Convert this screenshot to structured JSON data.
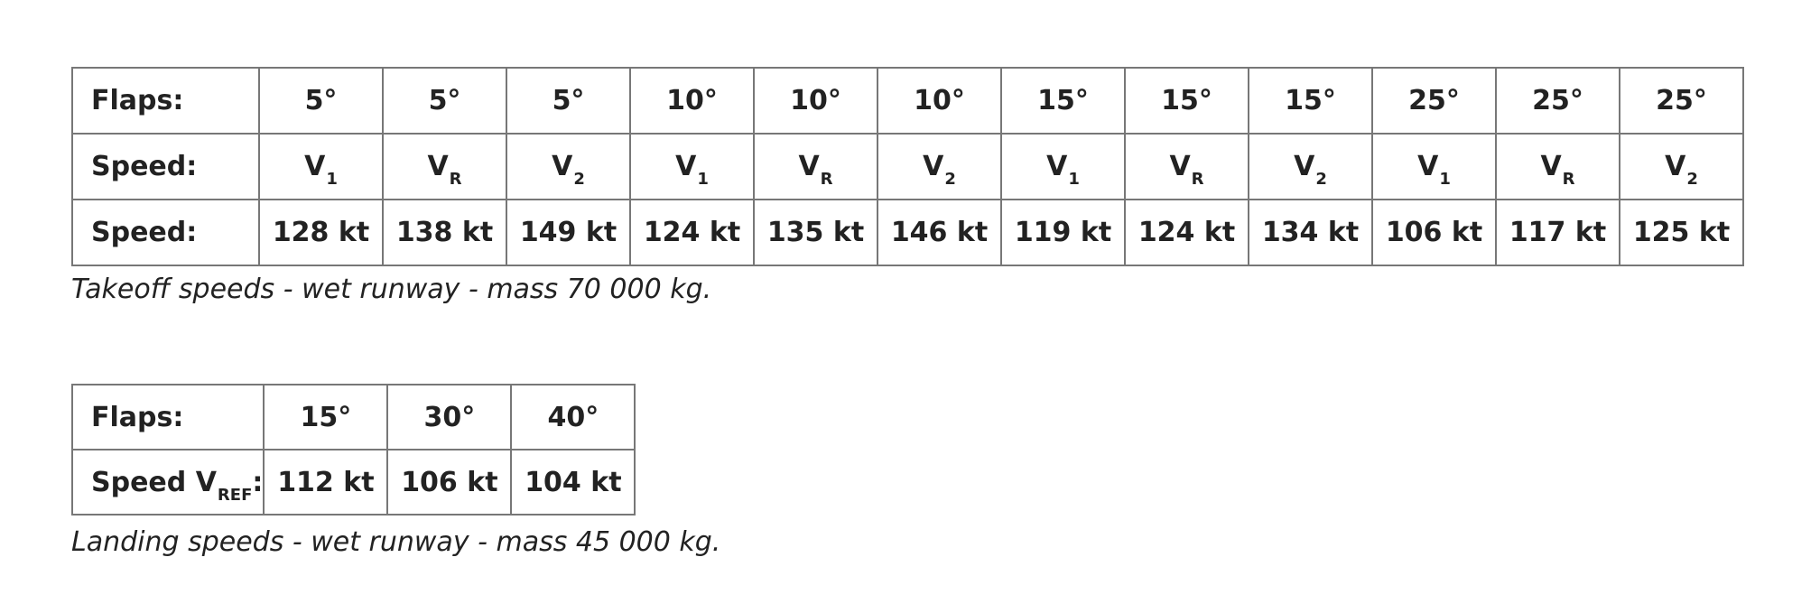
{
  "takeoff": {
    "flaps_label": "Flaps:",
    "speed_label": "Speed:",
    "value_label": "Speed:",
    "columns": [
      {
        "flaps": "5°",
        "v_base": "V",
        "v_sub": "1",
        "speed": "128 kt"
      },
      {
        "flaps": "5°",
        "v_base": "V",
        "v_sub": "R",
        "speed": "138 kt"
      },
      {
        "flaps": "5°",
        "v_base": "V",
        "v_sub": "2",
        "speed": "149 kt"
      },
      {
        "flaps": "10°",
        "v_base": "V",
        "v_sub": "1",
        "speed": "124 kt"
      },
      {
        "flaps": "10°",
        "v_base": "V",
        "v_sub": "R",
        "speed": "135 kt"
      },
      {
        "flaps": "10°",
        "v_base": "V",
        "v_sub": "2",
        "speed": "146 kt"
      },
      {
        "flaps": "15°",
        "v_base": "V",
        "v_sub": "1",
        "speed": "119 kt"
      },
      {
        "flaps": "15°",
        "v_base": "V",
        "v_sub": "R",
        "speed": "124 kt"
      },
      {
        "flaps": "15°",
        "v_base": "V",
        "v_sub": "2",
        "speed": "134 kt"
      },
      {
        "flaps": "25°",
        "v_base": "V",
        "v_sub": "1",
        "speed": "106 kt"
      },
      {
        "flaps": "25°",
        "v_base": "V",
        "v_sub": "R",
        "speed": "117 kt"
      },
      {
        "flaps": "25°",
        "v_base": "V",
        "v_sub": "2",
        "speed": "125 kt"
      }
    ],
    "caption": "Takeoff speeds - wet runway - mass 70 000 kg."
  },
  "landing": {
    "flaps_label": "Flaps:",
    "speed_label_prefix": "Speed V",
    "speed_label_sub": "REF",
    "speed_label_suffix": ":",
    "columns": [
      {
        "flaps": "15°",
        "speed": "112 kt"
      },
      {
        "flaps": "30°",
        "speed": "106 kt"
      },
      {
        "flaps": "40°",
        "speed": "104 kt"
      }
    ],
    "caption": "Landing speeds - wet runway - mass 45 000 kg."
  }
}
